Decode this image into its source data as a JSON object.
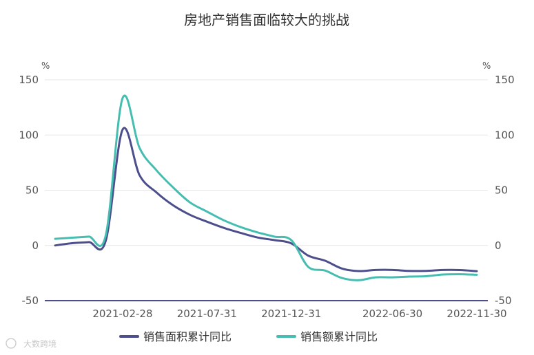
{
  "chart_data": {
    "type": "line",
    "title": "房地产销售面临较大的挑战",
    "unit_left": "%",
    "unit_right": "%",
    "ylim": [
      -50,
      150
    ],
    "y_ticks": [
      "150",
      "100",
      "50",
      "0",
      "-50"
    ],
    "y_ticks_right": [
      "150",
      "100",
      "50",
      "0",
      "-50"
    ],
    "x_tick_labels": [
      "2021-02-28",
      "2021-07-31",
      "2021-12-31",
      "2022-06-30",
      "2022-11-30"
    ],
    "x": [
      "2020-10-31",
      "2020-11-30",
      "2020-12-31",
      "2021-01-31",
      "2021-02-28",
      "2021-03-31",
      "2021-04-30",
      "2021-05-31",
      "2021-06-30",
      "2021-07-31",
      "2021-08-31",
      "2021-09-30",
      "2021-10-31",
      "2021-11-30",
      "2021-12-31",
      "2022-01-31",
      "2022-02-28",
      "2022-03-31",
      "2022-04-30",
      "2022-05-31",
      "2022-06-30",
      "2022-07-31",
      "2022-08-31",
      "2022-09-30",
      "2022-10-31",
      "2022-11-30"
    ],
    "series": [
      {
        "name": "销售面积累计同比",
        "color": "#4d4f8c",
        "values": [
          0,
          2,
          3,
          4,
          104.9,
          63.8,
          48.1,
          36.3,
          27.7,
          21.5,
          15.9,
          11.3,
          7.2,
          4.8,
          1.9,
          -9.2,
          -13.8,
          -20.9,
          -23.2,
          -22.2,
          -22.2,
          -23.1,
          -23.0,
          -22.2,
          -22.3,
          -23.3
        ]
      },
      {
        "name": "销售额累计同比",
        "color": "#45bdb0",
        "values": [
          6,
          7,
          8,
          9,
          133.4,
          88.5,
          68.2,
          52.4,
          38.9,
          30.7,
          22.8,
          16.6,
          11.8,
          8.0,
          4.8,
          -19.3,
          -22.7,
          -29.5,
          -31.5,
          -28.9,
          -28.9,
          -28.2,
          -27.9,
          -26.3,
          -26.1,
          -26.6
        ]
      }
    ],
    "grid": "horizontal",
    "legend": "bottom"
  },
  "watermark": "大数跨境"
}
